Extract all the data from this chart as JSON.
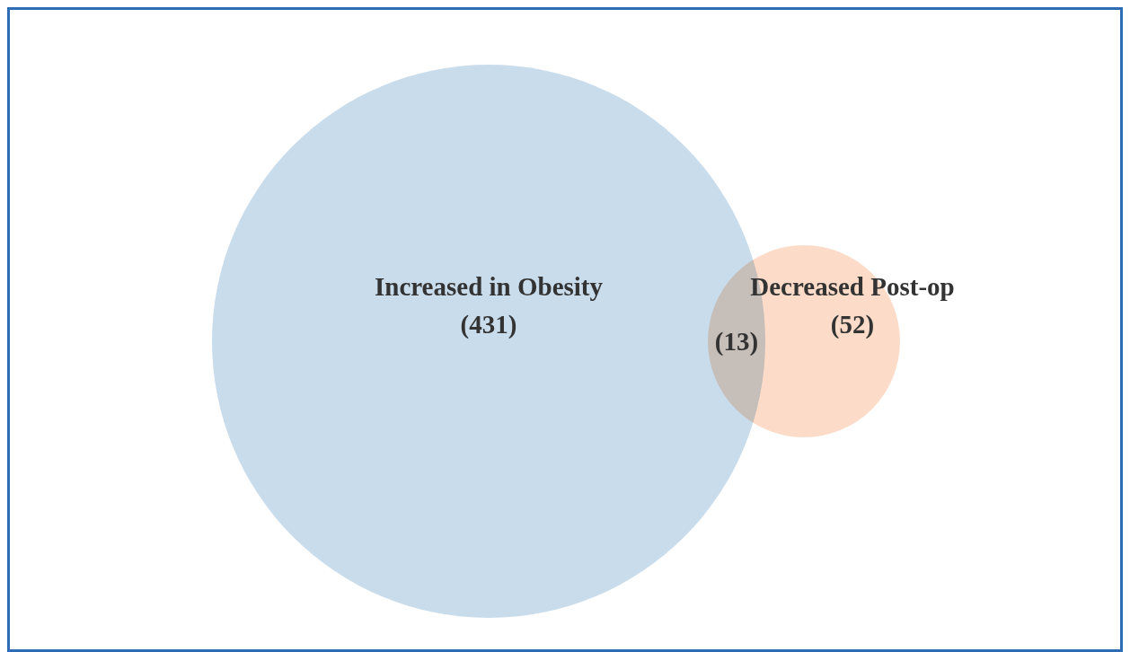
{
  "chart_data": {
    "type": "other",
    "categories": [
      "Increased in Obesity",
      "Decreased Post-op"
    ],
    "values": [
      431,
      52
    ],
    "value_labels": [
      "(431)",
      "(52)"
    ],
    "colors": [
      "#c9dcec",
      "#fcdcc8"
    ],
    "annotations": [
      "(13)"
    ]
  }
}
